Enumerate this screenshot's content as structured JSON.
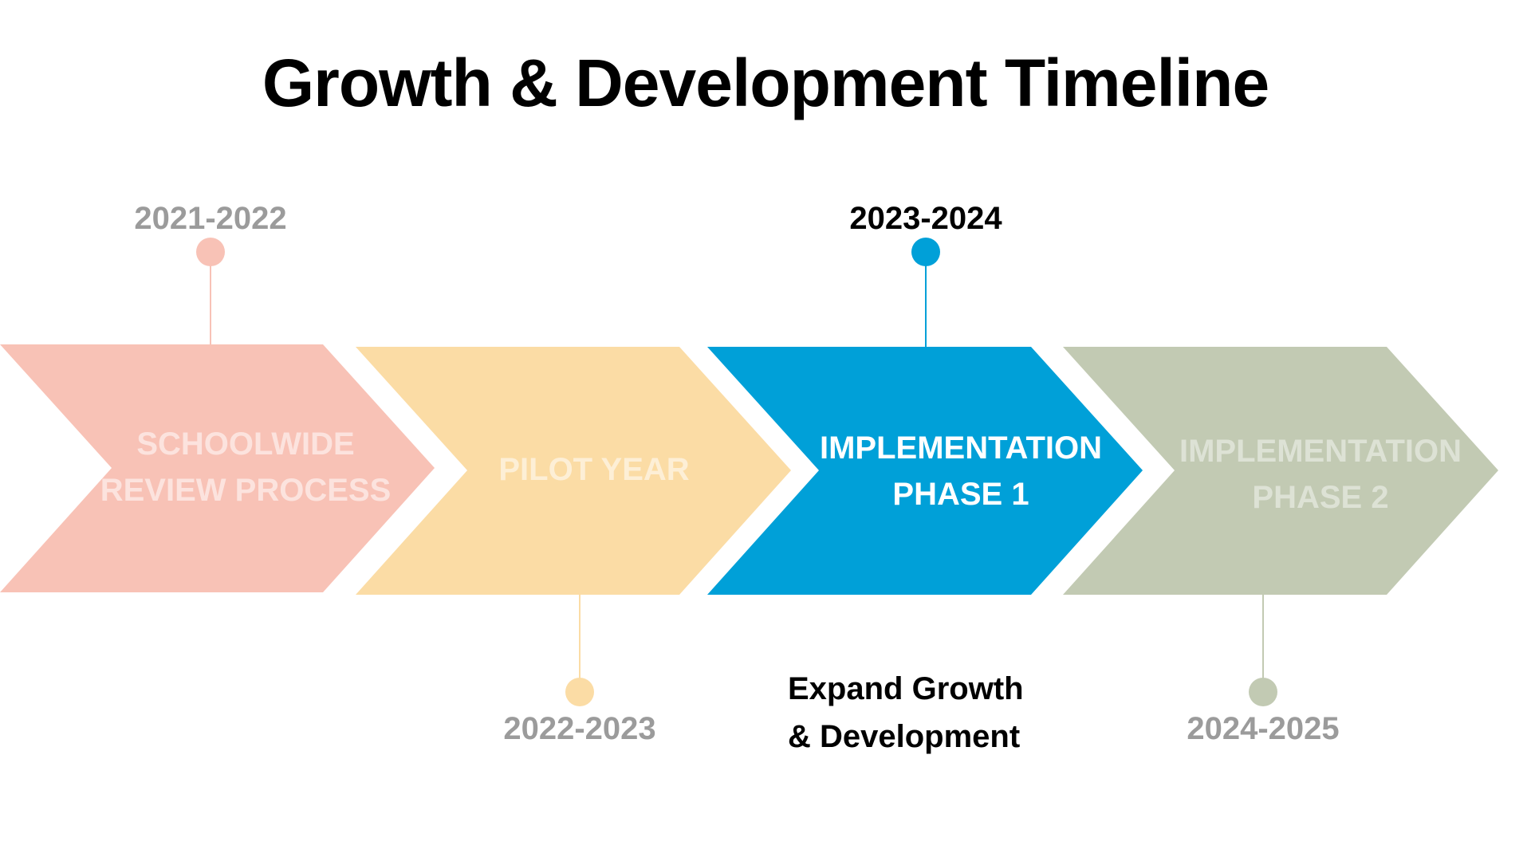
{
  "title": "Growth & Development Timeline",
  "colors": {
    "schoolwide": "#f8c2b6",
    "pilot": "#fbdca5",
    "phase1": "#00a0d8",
    "phase2": "#c2cab3",
    "muted_text": "#9b9b9b",
    "active_text": "#000000"
  },
  "stages": [
    {
      "id": "schoolwide-review-process",
      "label_lines": [
        "SCHOOLWIDE",
        "REVIEW PROCESS"
      ],
      "years": "2021-2022",
      "marker": "top",
      "active": false
    },
    {
      "id": "pilot-year",
      "label_lines": [
        "PILOT YEAR"
      ],
      "years": "2022-2023",
      "marker": "bottom",
      "active": false
    },
    {
      "id": "implementation-phase-1",
      "label_lines": [
        "IMPLEMENTATION",
        "PHASE 1"
      ],
      "years": "2023-2024",
      "marker": "top",
      "active": true
    },
    {
      "id": "implementation-phase-2",
      "label_lines": [
        "IMPLEMENTATION",
        "PHASE 2"
      ],
      "years": "2024-2025",
      "marker": "bottom",
      "active": false
    }
  ],
  "note": {
    "lines": [
      "Expand Growth",
      "& Development"
    ]
  }
}
